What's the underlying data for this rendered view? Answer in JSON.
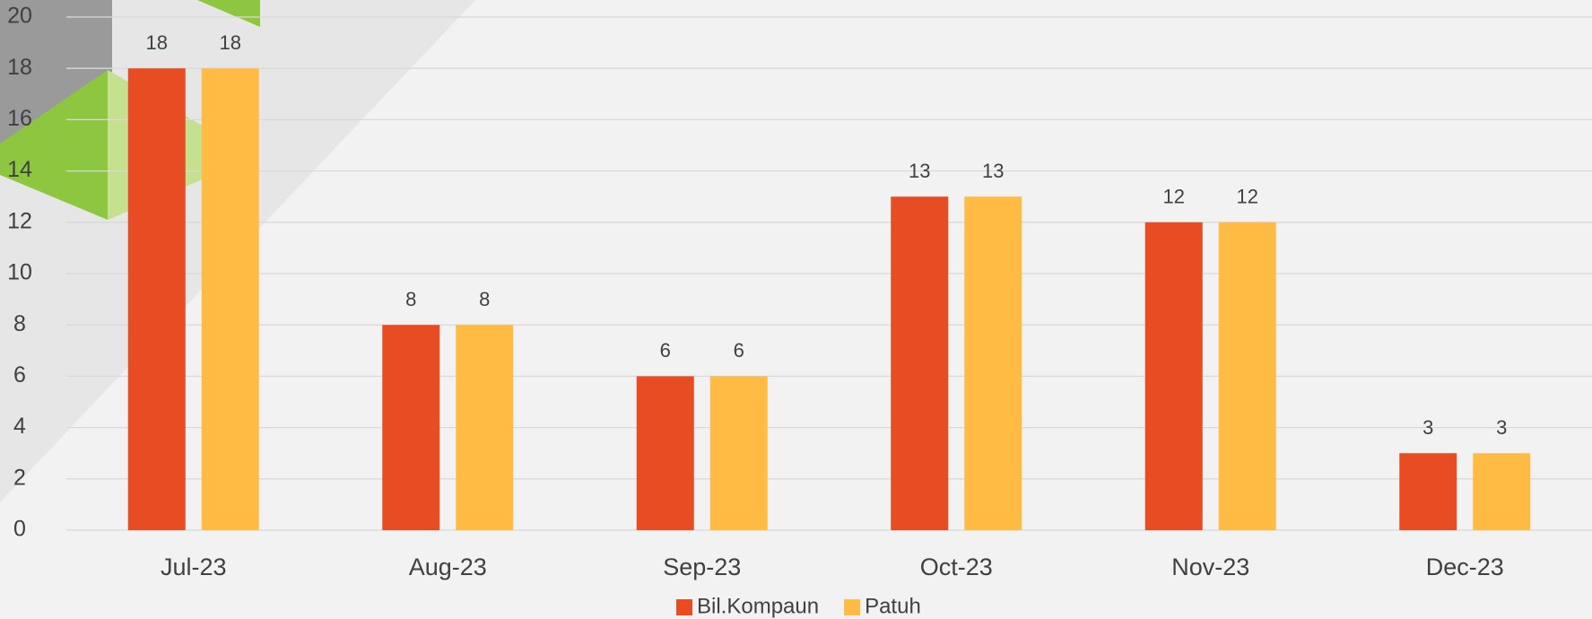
{
  "chart_data": {
    "type": "bar",
    "categories": [
      "Jul-23",
      "Aug-23",
      "Sep-23",
      "Oct-23",
      "Nov-23",
      "Dec-23"
    ],
    "series": [
      {
        "name": "Bil.Kompaun",
        "color": "#e84c22",
        "values": [
          18,
          8,
          6,
          13,
          12,
          3
        ]
      },
      {
        "name": "Patuh",
        "color": "#ffbb44",
        "values": [
          18,
          8,
          6,
          13,
          12,
          3
        ]
      }
    ],
    "ylim": [
      0,
      20
    ],
    "yticks": [
      0,
      2,
      4,
      6,
      8,
      10,
      12,
      14,
      16,
      18,
      20
    ],
    "grid": true,
    "legend": "bottom"
  }
}
